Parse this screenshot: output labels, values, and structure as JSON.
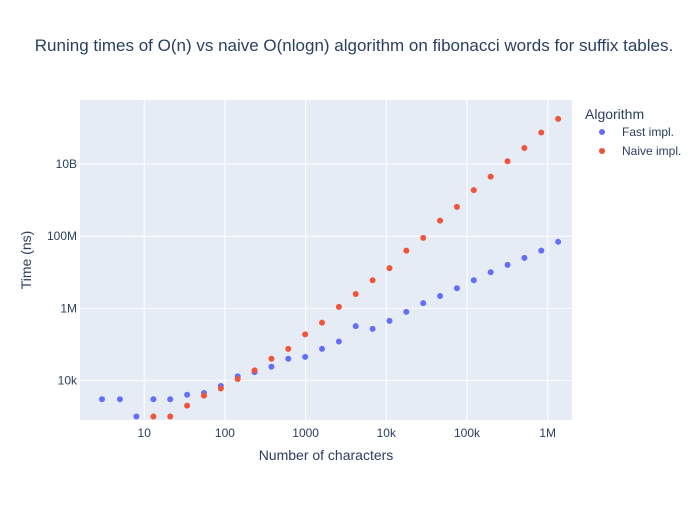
{
  "chart_data": {
    "type": "scatter",
    "title": "Runing times of O(n) vs naive O(nlogn) algorithm on fibonacci words for suffix tables.",
    "xlabel": "Number of characters",
    "ylabel": "Time (ns)",
    "x_scale": "log",
    "y_scale": "log",
    "xlim": [
      1.6,
      2000000
    ],
    "ylim": [
      800,
      600000000000
    ],
    "grid": true,
    "legend": {
      "title": "Algorithm",
      "position": "top-right"
    },
    "x_ticks": [
      {
        "value": 10,
        "label": "10"
      },
      {
        "value": 100,
        "label": "100"
      },
      {
        "value": 1000,
        "label": "1000"
      },
      {
        "value": 10000,
        "label": "10k"
      },
      {
        "value": 100000,
        "label": "100k"
      },
      {
        "value": 1000000,
        "label": "1M"
      }
    ],
    "y_ticks": [
      {
        "value": 10000,
        "label": "10k"
      },
      {
        "value": 1000000,
        "label": "1M"
      },
      {
        "value": 100000000,
        "label": "100M"
      },
      {
        "value": 10000000000,
        "label": "10B"
      }
    ],
    "series": [
      {
        "name": "Fast impl.",
        "color": "#636efa",
        "x": [
          3,
          5,
          8,
          13,
          21,
          34,
          55,
          89,
          144,
          233,
          377,
          610,
          987,
          1597,
          2584,
          4181,
          6765,
          10946,
          17711,
          28657,
          46368,
          75025,
          121393,
          196418,
          317811,
          514229,
          832040,
          1346269
        ],
        "y": [
          3000,
          3000,
          1000,
          3000,
          3000,
          4000,
          4500,
          7000,
          13000,
          17000,
          24000,
          40000,
          45000,
          75000,
          120000,
          320000,
          270000,
          450000,
          800000,
          1400000,
          2200000,
          3600000,
          6000000,
          10000000,
          16000000,
          25000000,
          40000000,
          70000000
        ]
      },
      {
        "name": "Naive impl.",
        "color": "#ef553b",
        "x": [
          13,
          21,
          34,
          55,
          89,
          144,
          233,
          377,
          610,
          987,
          1597,
          2584,
          4181,
          6765,
          10946,
          17711,
          28657,
          46368,
          75025,
          121393,
          196418,
          317811,
          514229,
          832040,
          1346269
        ],
        "y": [
          1000,
          1000,
          2000,
          3800,
          6000,
          11000,
          19000,
          40000,
          75000,
          190000,
          400000,
          1100000,
          2500000,
          6000000,
          13000000,
          40000000,
          90000000,
          270000000,
          650000000,
          1900000000,
          4500000000,
          12000000000,
          28000000000,
          75000000000,
          180000000000
        ]
      }
    ]
  }
}
